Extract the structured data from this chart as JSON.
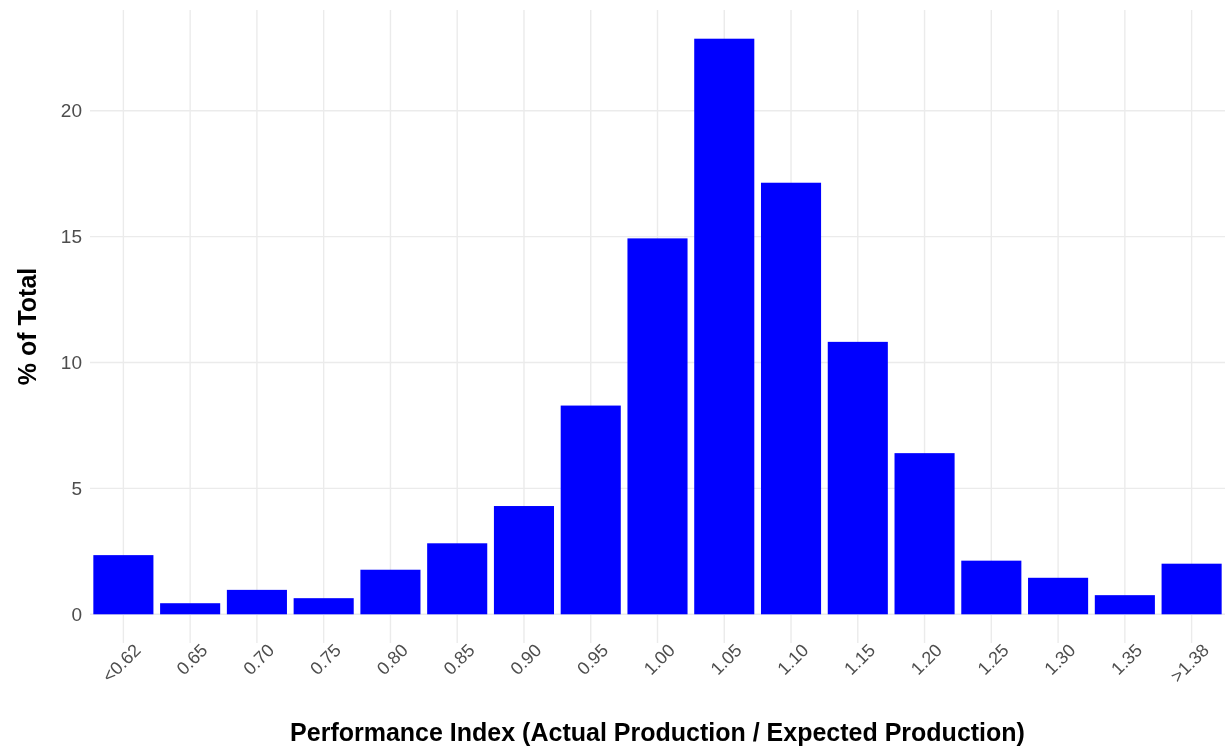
{
  "chart_data": {
    "type": "bar",
    "xlabel": "Performance Index (Actual Production / Expected Production)",
    "ylabel": "% of Total",
    "categories": [
      "<0.62",
      "0.65",
      "0.70",
      "0.75",
      "0.80",
      "0.85",
      "0.90",
      "0.95",
      "1.00",
      "1.05",
      "1.10",
      "1.15",
      "1.20",
      "1.25",
      "1.30",
      "1.35",
      ">1.38"
    ],
    "values": [
      2.35,
      0.44,
      0.97,
      0.64,
      1.77,
      2.82,
      4.3,
      8.29,
      14.93,
      22.86,
      17.14,
      10.82,
      6.4,
      2.13,
      1.45,
      0.76,
      2.01
    ],
    "color": "#0000ff",
    "ylim": [
      -1.14,
      24
    ],
    "yticks": [
      0,
      5,
      10,
      15,
      20
    ],
    "grid": true
  }
}
